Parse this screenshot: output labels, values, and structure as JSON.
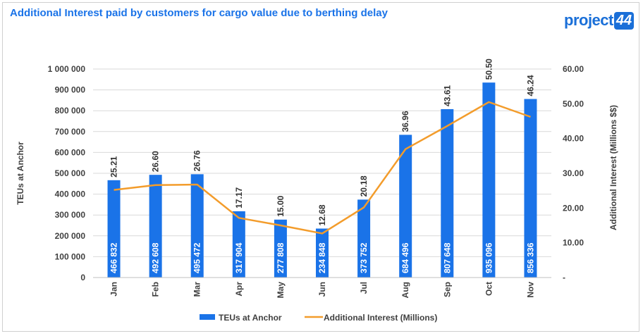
{
  "chart_data": {
    "type": "bar",
    "title": "Additional Interest paid by customers for cargo value due to berthing delay",
    "categories": [
      "Jan",
      "Feb",
      "Mar",
      "Apr",
      "May",
      "Jun",
      "Jul",
      "Aug",
      "Sep",
      "Oct",
      "Nov"
    ],
    "series": [
      {
        "name": "TEUs at Anchor",
        "type": "bar",
        "axis": "left",
        "color": "#1a73e8",
        "values": [
          466832,
          492608,
          495472,
          317904,
          277808,
          234848,
          373752,
          684496,
          807648,
          935096,
          856336
        ],
        "labels": [
          "466 832",
          "492 608",
          "495 472",
          "317 904",
          "277 808",
          "234 848",
          "373 752",
          "684 496",
          "807 648",
          "935 096",
          "856 336"
        ]
      },
      {
        "name": "Additional Interest (Millions)",
        "type": "line",
        "axis": "right",
        "color": "#f39c2b",
        "values": [
          25.21,
          26.6,
          26.76,
          17.17,
          15.0,
          12.68,
          20.18,
          36.96,
          43.61,
          50.5,
          46.24
        ],
        "labels": [
          "25.21",
          "26.60",
          "26.76",
          "17.17",
          "15.00",
          "12.68",
          "20.18",
          "36.96",
          "43.61",
          "50.50",
          "46.24"
        ]
      }
    ],
    "ylabel": "TEUs at Anchor",
    "ylim": [
      0,
      1000000
    ],
    "yticks": [
      "0",
      "100 000",
      "200 000",
      "300 000",
      "400 000",
      "500 000",
      "600 000",
      "700 000",
      "800 000",
      "900 000",
      "1 000 000"
    ],
    "y2label": "Additional Interest (Millions $$)",
    "y2lim": [
      0,
      60
    ],
    "y2ticks": [
      "-",
      "10.00",
      "20.00",
      "30.00",
      "40.00",
      "50.00",
      "60.00"
    ],
    "grid": true,
    "legend_position": "bottom"
  },
  "logo": {
    "word": "project",
    "number": "44"
  }
}
